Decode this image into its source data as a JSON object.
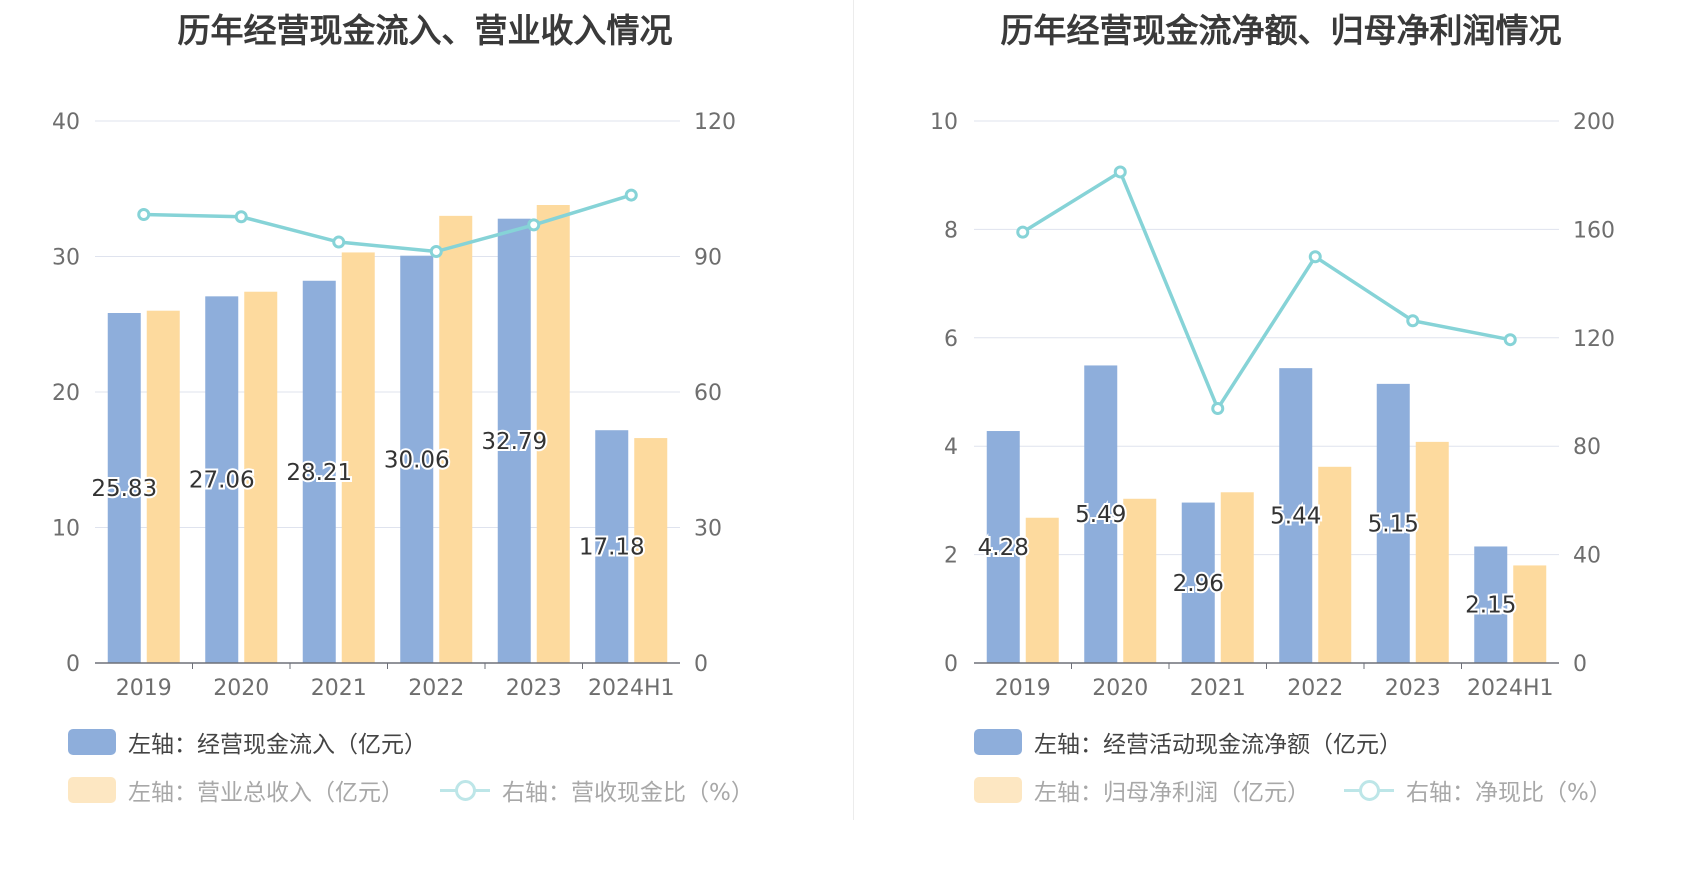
{
  "chart_data": [
    {
      "type": "bar",
      "title": "历年经营现金流入、营业收入情况",
      "categories": [
        "2019",
        "2020",
        "2021",
        "2022",
        "2023",
        "2024H1"
      ],
      "y_left": {
        "ticks": [
          "0",
          "10",
          "20",
          "30",
          "40"
        ],
        "ylim": [
          0,
          40
        ]
      },
      "y_right": {
        "ticks": [
          "0",
          "30",
          "60",
          "90",
          "120"
        ],
        "ylim": [
          0,
          120
        ]
      },
      "grid": true,
      "legend_position": "bottom",
      "series": [
        {
          "name": "左轴：经营现金流入（亿元）",
          "kind": "bar",
          "axis": "left",
          "color": "#8eaedb",
          "values": [
            25.83,
            27.06,
            28.21,
            30.06,
            32.79,
            17.18
          ],
          "labels": [
            "25.83",
            "27.06",
            "28.21",
            "30.06",
            "32.79",
            "17.18"
          ]
        },
        {
          "name": "左轴：营业总收入（亿元）",
          "kind": "bar",
          "axis": "left",
          "color": "#fdda9e",
          "values": [
            26.0,
            27.4,
            30.3,
            33.0,
            33.8,
            16.6
          ]
        },
        {
          "name": "右轴：营收现金比（%）",
          "kind": "line",
          "axis": "right",
          "color": "#86d3d7",
          "values": [
            99.3,
            98.8,
            93.2,
            91.1,
            97.0,
            103.6
          ]
        }
      ]
    },
    {
      "type": "bar",
      "title": "历年经营现金流净额、归母净利润情况",
      "categories": [
        "2019",
        "2020",
        "2021",
        "2022",
        "2023",
        "2024H1"
      ],
      "y_left": {
        "ticks": [
          "0",
          "2",
          "4",
          "6",
          "8",
          "10"
        ],
        "ylim": [
          0,
          10
        ]
      },
      "y_right": {
        "ticks": [
          "0",
          "40",
          "80",
          "120",
          "160",
          "200"
        ],
        "ylim": [
          0,
          200
        ]
      },
      "grid": true,
      "legend_position": "bottom",
      "series": [
        {
          "name": "左轴：经营活动现金流净额（亿元）",
          "kind": "bar",
          "axis": "left",
          "color": "#8eaedb",
          "values": [
            4.28,
            5.49,
            2.96,
            5.44,
            5.15,
            2.15
          ],
          "labels": [
            "4.28",
            "5.49",
            "2.96",
            "5.44",
            "5.15",
            "2.15"
          ]
        },
        {
          "name": "左轴：归母净利润（亿元）",
          "kind": "bar",
          "axis": "left",
          "color": "#fdda9e",
          "values": [
            2.68,
            3.03,
            3.15,
            3.62,
            4.08,
            1.8
          ]
        },
        {
          "name": "右轴：净现比（%）",
          "kind": "line",
          "axis": "right",
          "color": "#86d3d7",
          "values": [
            159.0,
            181.2,
            93.9,
            149.9,
            126.3,
            119.3
          ]
        }
      ]
    }
  ]
}
